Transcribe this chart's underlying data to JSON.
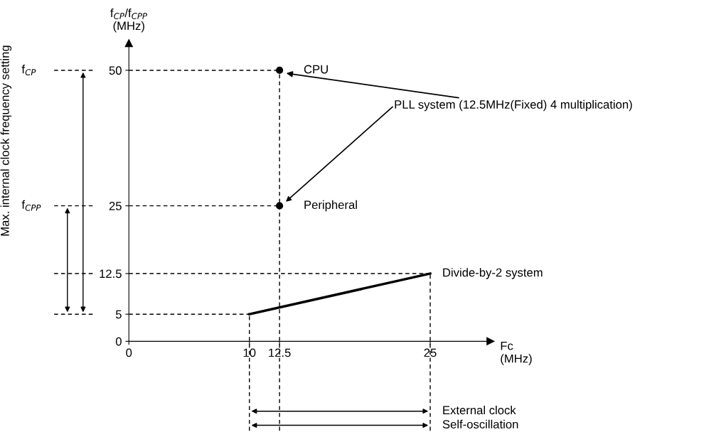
{
  "chart_data": {
    "type": "line",
    "title": "f$_{CP}$/f$_{CPP}$\n(MHz)",
    "xlabel": "Fc\n(MHz)",
    "xlim": [
      0,
      30
    ],
    "ylim": [
      0,
      55
    ],
    "xticks": [
      0,
      10,
      12.5,
      25
    ],
    "yticks": [
      0,
      5,
      12.5,
      25,
      50
    ],
    "series": [
      {
        "name": "Divide-by-2 system",
        "color": "#000000",
        "x": [
          10,
          25
        ],
        "values": [
          5,
          12.5
        ],
        "marker": "none"
      },
      {
        "type": "scatter",
        "color": "#000000",
        "x": [
          12.5,
          12.5
        ],
        "values": [
          50,
          25
        ],
        "value_labels": [
          "CPU",
          "Peripheral"
        ],
        "marker": "circle"
      }
    ],
    "ref_lines": [
      {
        "axis": "y",
        "value": 50,
        "line_style": "dashed",
        "color": "#000000"
      },
      {
        "axis": "y",
        "value": 25,
        "line_style": "dashed",
        "color": "#000000"
      },
      {
        "axis": "y",
        "value": 12.5,
        "line_style": "dashed",
        "color": "#000000"
      },
      {
        "axis": "y",
        "value": 5,
        "line_style": "dashed",
        "color": "#000000"
      },
      {
        "axis": "x",
        "value": 10,
        "line_style": "dashed",
        "color": "#000000"
      },
      {
        "axis": "x",
        "value": 12.5,
        "line_style": "dashed",
        "color": "#000000"
      },
      {
        "axis": "x",
        "value": 25,
        "line_style": "dashed",
        "color": "#000000"
      }
    ],
    "annotations": [
      "PLL system (12.5MHz(Fixed) 4 multiplication)",
      "f$_{CP}$",
      "f$_{CPP}$",
      "External clock",
      "Self-oscillation",
      "Max. internal clock frequency setting"
    ],
    "grid": false,
    "legend": false
  }
}
